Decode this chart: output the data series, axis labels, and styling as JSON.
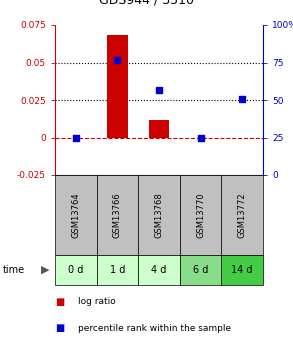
{
  "title": "GDS944 / 3510",
  "samples": [
    "GSM13764",
    "GSM13766",
    "GSM13768",
    "GSM13770",
    "GSM13772"
  ],
  "time_labels": [
    "0 d",
    "1 d",
    "4 d",
    "6 d",
    "14 d"
  ],
  "log_ratio": [
    0.0,
    0.068,
    0.012,
    0.0,
    0.0
  ],
  "percentile_rank": [
    25.0,
    77.0,
    57.0,
    25.0,
    51.0
  ],
  "ylim_left": [
    -0.025,
    0.075
  ],
  "ylim_right": [
    0,
    100
  ],
  "yticks_left": [
    -0.025,
    0,
    0.025,
    0.05,
    0.075
  ],
  "yticks_right": [
    0,
    25,
    50,
    75,
    100
  ],
  "hline_dashed_red": 0.0,
  "hline_dotted_black_1": 0.05,
  "hline_dotted_black_2": 0.025,
  "bar_color": "#cc0000",
  "square_color": "#0000cc",
  "left_axis_color": "#cc0000",
  "right_axis_color": "#0000cc",
  "sample_box_color": "#c0c0c0",
  "time_box_colors": [
    "#ccffcc",
    "#ccffcc",
    "#ccffcc",
    "#88dd88",
    "#44cc44"
  ],
  "legend_bar_label": "log ratio",
  "legend_sq_label": "percentile rank within the sample",
  "bar_width": 0.5,
  "figsize": [
    2.93,
    3.45
  ],
  "dpi": 100
}
